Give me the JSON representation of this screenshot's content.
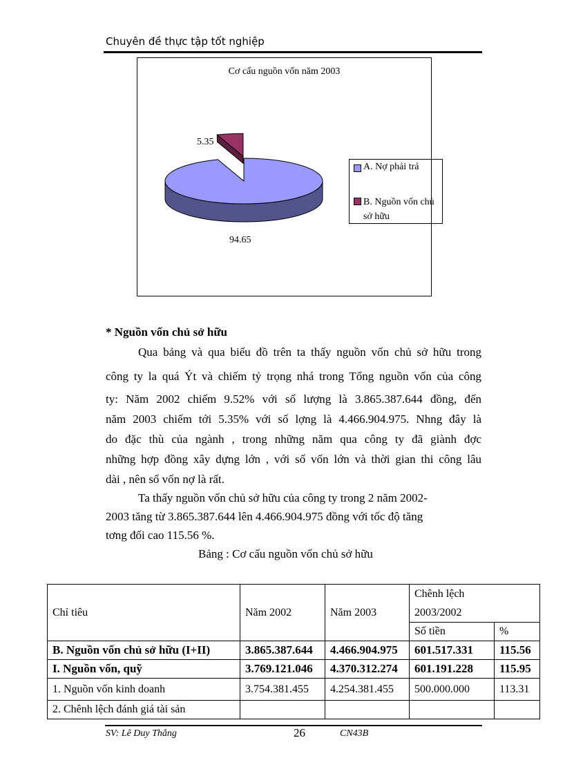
{
  "header": {
    "title": "Chuyên đề thực tập tốt nghiệp"
  },
  "chart_data": {
    "type": "pie",
    "title": "Cơ cấu nguồn vốn năm 2003",
    "categories": [
      "A. Nợ phải trả",
      "B. Nguồn vốn chủ sở hữu"
    ],
    "values": [
      94.65,
      5.35
    ],
    "data_labels": [
      "94.65",
      "5.35"
    ],
    "colors": [
      "#9999ff",
      "#993366"
    ],
    "style": "3d-exploded",
    "legend_position": "right"
  },
  "body": {
    "heading": "*  Nguồn vốn chủ sở hữu",
    "lines": [
      "Qua bảng và qua biểu đồ trên ta thấy nguồn vốn chủ sở hữu trong",
      "công ty la quá Ýt và chiếm tỷ trọng nhá trong Tổng nguồn vốn của công",
      "ty: Năm 2002  chiếm 9.52% với số lượng là 3.865.387.644 đồng, đến",
      "năm 2003 chiếm tới 5.35% với số lợng   là 4.466.904.975. Nhng   đây là",
      "do đặc thù của ngành , trong những năm qua công ty đã giành đợc",
      "những hợp đồng xây dựng lớn , với số vốn lớn và thời gian thi công lâu",
      "dài , nên số vốn nợ là rất.",
      "Ta thấy nguồn vốn chủ sở hữu của công ty trong 2 năm 2002-",
      "2003 tăng từ 3.865.387.644 lên 4.466.904.975 đồng với tốc độ tăng",
      "tơng   đối cao 115.56 %."
    ],
    "table_caption": "Bảng : Cơ cấu nguồn vốn chủ sở hữu"
  },
  "table": {
    "headers": {
      "c1": "Chỉ tiêu",
      "c2": "Năm 2002",
      "c3": "Năm 2003",
      "c4": "Chênh lệch",
      "c4b": "2003/2002",
      "c4a": "Số tiền",
      "c5": "%"
    },
    "rows": [
      {
        "name": "B. Nguồn vốn chủ sở hữu (I+II)",
        "y2002": "3.865.387.644",
        "y2003": "4.466.904.975",
        "diff": "601.517.331",
        "pct": "115.56",
        "bold": true
      },
      {
        "name": "I. Nguồn vốn, quỹ",
        "y2002": "3.769.121.046",
        "y2003": "4.370.312.274",
        "diff": "601.191.228",
        "pct": "115.95",
        "bold": true
      },
      {
        "name": "1. Nguồn vốn kinh doanh",
        "y2002": "3.754.381.455",
        "y2003": "4.254.381.455",
        "diff": "500.000.000",
        "pct": "113.31",
        "bold": false
      },
      {
        "name": "2. Chênh lệch đánh giá tài sản",
        "y2002": "",
        "y2003": "",
        "diff": "",
        "pct": "",
        "bold": false
      }
    ]
  },
  "footer": {
    "student": "SV: Lê Duy Thắng",
    "page": "26",
    "class": "CN43B"
  }
}
